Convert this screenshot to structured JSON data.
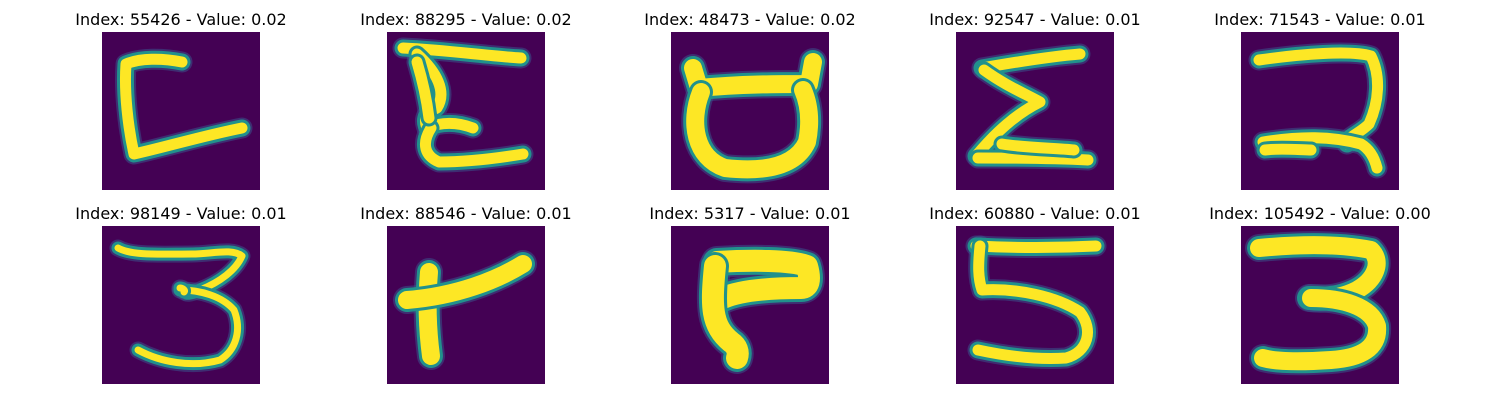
{
  "figure": {
    "background": "#ffffff",
    "colormap": "viridis",
    "image_background_color": "#440154",
    "stroke_color": "#fde725",
    "stroke_edge_color": "#21918c"
  },
  "panels": [
    {
      "title": "Index: 55426 - Value: 0.02",
      "glyph": "c-angled-icon"
    },
    {
      "title": "Index: 88295 - Value: 0.02",
      "glyph": "e-script-icon"
    },
    {
      "title": "Index: 48473 - Value: 0.02",
      "glyph": "cup-handles-icon"
    },
    {
      "title": "Index: 92547 - Value: 0.01",
      "glyph": "sigma-icon"
    },
    {
      "title": "Index: 71543 - Value: 0.01",
      "glyph": "reversed-r-icon"
    },
    {
      "title": "Index: 98149 - Value: 0.01",
      "glyph": "three-thin-icon"
    },
    {
      "title": "Index: 88546 - Value: 0.01",
      "glyph": "r-bold-icon"
    },
    {
      "title": "Index: 5317 - Value: 0.01",
      "glyph": "flag-block-icon"
    },
    {
      "title": "Index: 60880 - Value: 0.01",
      "glyph": "five-icon"
    },
    {
      "title": "Index: 105492 - Value: 0.00",
      "glyph": "three-bold-icon"
    }
  ]
}
